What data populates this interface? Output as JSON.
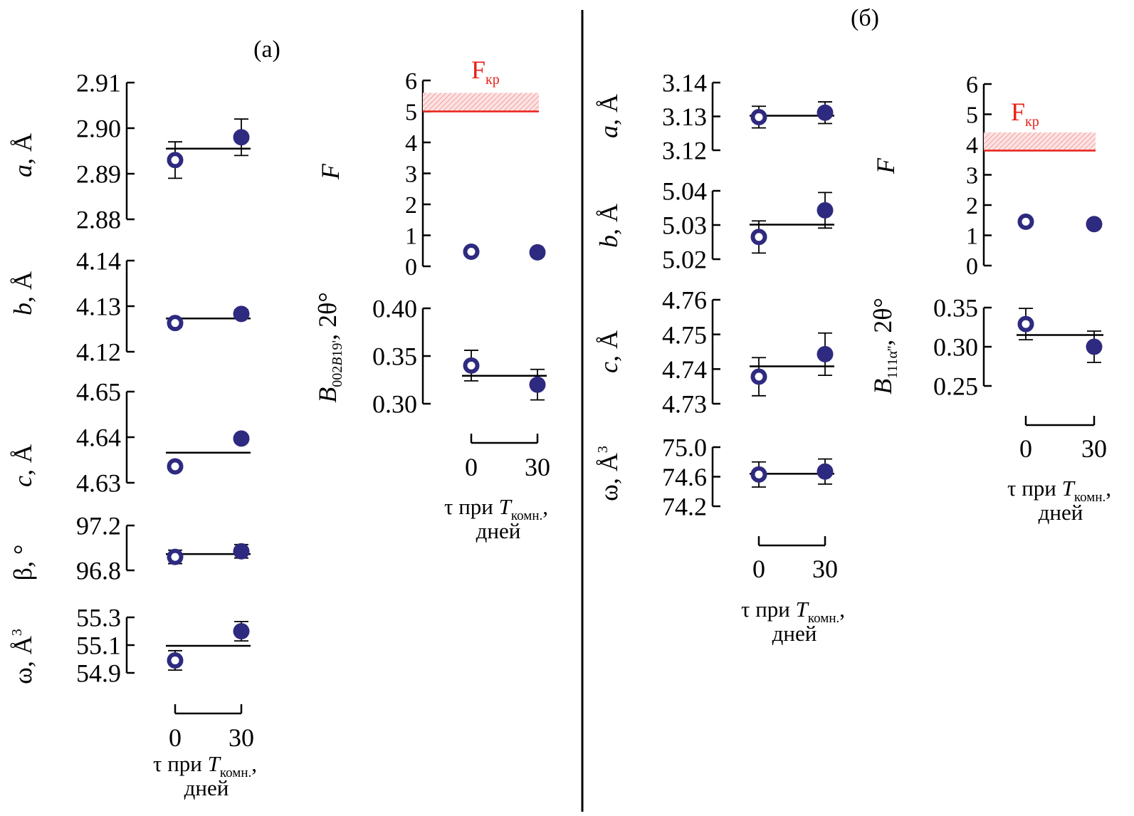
{
  "colors": {
    "marker": "#2e2a80",
    "critical": "#e8211a",
    "hatch": "#f4a6a6",
    "axis": "#000000"
  },
  "panel_a": {
    "label": "(а)",
    "xlabel_line1": "τ при ",
    "xlabel_T": "T",
    "xlabel_sub": "комн.",
    "xlabel_comma": ",",
    "xlabel_line2": "дней",
    "fcrit_main": "F",
    "fcrit_sub": "кр"
  },
  "panel_b": {
    "label": "(б)",
    "xlabel_line1": "τ при ",
    "xlabel_T": "T",
    "xlabel_sub": "комн.",
    "xlabel_comma": ",",
    "xlabel_line2": "дней",
    "fcrit_main": "F",
    "fcrit_sub": "кр"
  },
  "chart_data": [
    {
      "id": "a-a",
      "type": "scatter",
      "ylabel": "a, Å",
      "x": [
        0,
        30
      ],
      "xticks": [
        "0",
        "30"
      ],
      "values": [
        2.893,
        2.898
      ],
      "errors": [
        0.004,
        0.004
      ],
      "mean": 2.8955,
      "ylim": [
        2.88,
        2.91
      ],
      "yticks": [
        "2.91",
        "2.90",
        "2.89",
        "2.88"
      ]
    },
    {
      "id": "a-b",
      "type": "scatter",
      "ylabel": "b, Å",
      "x": [
        0,
        30
      ],
      "values": [
        4.1263,
        4.1283
      ],
      "errors": [
        0.0009,
        0.0009
      ],
      "mean": 4.1273,
      "ylim": [
        4.12,
        4.14
      ],
      "yticks": [
        "4.14",
        "4.13",
        "4.12"
      ]
    },
    {
      "id": "a-c",
      "type": "scatter",
      "ylabel": "c, Å",
      "x": [
        0,
        30
      ],
      "values": [
        4.6336,
        4.6397
      ],
      "errors": [
        0.0004,
        0.0004
      ],
      "mean": 4.6366,
      "ylim": [
        4.63,
        4.65
      ],
      "yticks": [
        "4.65",
        "4.64",
        "4.63"
      ]
    },
    {
      "id": "a-beta",
      "type": "scatter",
      "ylabel": "β, °",
      "x": [
        0,
        30
      ],
      "values": [
        96.92,
        96.97
      ],
      "errors": [
        0.06,
        0.06
      ],
      "mean": 96.945,
      "ylim": [
        96.8,
        97.2
      ],
      "yticks": [
        "97.2",
        "96.8"
      ]
    },
    {
      "id": "a-omega",
      "type": "scatter",
      "ylabel": "ω, Å³",
      "x": [
        0,
        30
      ],
      "values": [
        54.99,
        55.2
      ],
      "errors": [
        0.07,
        0.07
      ],
      "mean": 55.095,
      "ylim": [
        54.9,
        55.3
      ],
      "yticks": [
        "55.3",
        "55.1",
        "54.9"
      ]
    },
    {
      "id": "a-F",
      "type": "scatter",
      "ylabel": "F",
      "x": [
        0,
        30
      ],
      "xticks": [
        "0",
        "30"
      ],
      "values": [
        0.47,
        0.45
      ],
      "ylim": [
        0,
        6
      ],
      "yticks": [
        "6",
        "5",
        "4",
        "3",
        "2",
        "1",
        "0"
      ],
      "F_critical": [
        5.0,
        5.6
      ]
    },
    {
      "id": "a-B",
      "type": "scatter",
      "ylabel": "B002B19', 2θ°",
      "x": [
        0,
        30
      ],
      "xticks": [
        "0",
        "30"
      ],
      "values": [
        0.34,
        0.32
      ],
      "errors": [
        0.016,
        0.016
      ],
      "mean": 0.3293,
      "ylim": [
        0.3,
        0.4
      ],
      "yticks": [
        "0.40",
        "0.35",
        "0.30"
      ]
    },
    {
      "id": "b-a",
      "type": "scatter",
      "ylabel": "a, Å",
      "x": [
        0,
        30
      ],
      "values": [
        3.1298,
        3.1311
      ],
      "errors": [
        0.0032,
        0.0032
      ],
      "mean": 3.1302,
      "ylim": [
        3.12,
        3.14
      ],
      "yticks": [
        "3.14",
        "3.13",
        "3.12"
      ]
    },
    {
      "id": "b-b",
      "type": "scatter",
      "ylabel": "b, Å",
      "x": [
        0,
        30
      ],
      "values": [
        5.0265,
        5.0343
      ],
      "errors": [
        0.0047,
        0.0052
      ],
      "mean": 5.0301,
      "ylim": [
        5.02,
        5.04
      ],
      "yticks": [
        "5.04",
        "5.03",
        "5.02"
      ]
    },
    {
      "id": "b-c",
      "type": "scatter",
      "ylabel": "c, Å",
      "x": [
        0,
        30
      ],
      "values": [
        4.7378,
        4.7443
      ],
      "errors": [
        0.0055,
        0.0061
      ],
      "mean": 4.7408,
      "ylim": [
        4.73,
        4.76
      ],
      "yticks": [
        "4.76",
        "4.75",
        "4.74",
        "4.73"
      ]
    },
    {
      "id": "b-omega",
      "type": "scatter",
      "ylabel": "ω, Å³",
      "x": [
        0,
        30
      ],
      "xticks": [
        "0",
        "30"
      ],
      "values": [
        74.63,
        74.67
      ],
      "errors": [
        0.17,
        0.17
      ],
      "mean": 74.64,
      "ylim": [
        74.2,
        75.0
      ],
      "yticks": [
        "75.0",
        "74.6",
        "74.2"
      ]
    },
    {
      "id": "b-F",
      "type": "scatter",
      "ylabel": "F",
      "x": [
        0,
        30
      ],
      "values": [
        1.45,
        1.37
      ],
      "ylim": [
        0,
        6
      ],
      "yticks": [
        "6",
        "5",
        "4",
        "3",
        "2",
        "1",
        "0"
      ],
      "F_critical": [
        3.8,
        4.4
      ]
    },
    {
      "id": "b-B",
      "type": "scatter",
      "ylabel": "B111α'', 2θ°",
      "x": [
        0,
        30
      ],
      "xticks": [
        "0",
        "30"
      ],
      "values": [
        0.329,
        0.3
      ],
      "errors": [
        0.02,
        0.02
      ],
      "mean": 0.315,
      "ylim": [
        0.25,
        0.35
      ],
      "yticks": [
        "0.35",
        "0.30",
        "0.25"
      ]
    }
  ]
}
